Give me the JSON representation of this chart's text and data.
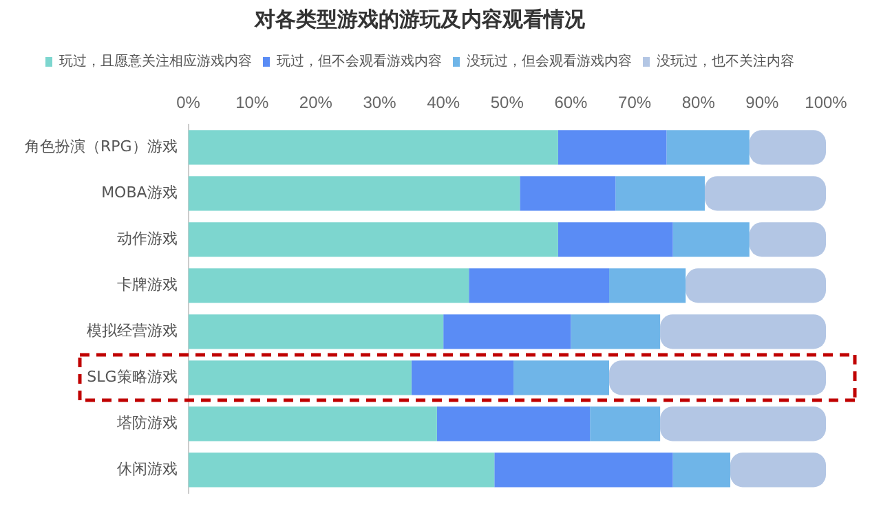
{
  "chart_data": {
    "type": "bar",
    "orientation": "horizontal",
    "stacked": true,
    "title": "对各类型游戏的游玩及内容观看情况",
    "categories": [
      "角色扮演（RPG）游戏",
      "MOBA游戏",
      "动作游戏",
      "卡牌游戏",
      "模拟经营游戏",
      "SLG策略游戏",
      "塔防游戏",
      "休闲游戏"
    ],
    "series": [
      {
        "name": "玩过，且愿意关注相应游戏内容",
        "color": "#7dd6cf",
        "values": [
          58,
          52,
          58,
          44,
          40,
          35,
          39,
          48
        ]
      },
      {
        "name": "玩过，但不会观看游戏内容",
        "color": "#5a8cf5",
        "values": [
          17,
          15,
          18,
          22,
          20,
          16,
          24,
          28
        ]
      },
      {
        "name": "没玩过，但会观看游戏内容",
        "color": "#6fb5e8",
        "values": [
          13,
          14,
          12,
          12,
          14,
          15,
          11,
          9
        ]
      },
      {
        "name": "没玩过，也不关注内容",
        "color": "#b3c6e4",
        "values": [
          12,
          19,
          12,
          22,
          26,
          34,
          26,
          15
        ]
      }
    ],
    "xlim": [
      0,
      100
    ],
    "xticks": [
      {
        "value": 0,
        "label": "0%"
      },
      {
        "value": 10,
        "label": "10%"
      },
      {
        "value": 20,
        "label": "20%"
      },
      {
        "value": 30,
        "label": "30%"
      },
      {
        "value": 40,
        "label": "40%"
      },
      {
        "value": 50,
        "label": "50%"
      },
      {
        "value": 60,
        "label": "60%"
      },
      {
        "value": 70,
        "label": "70%"
      },
      {
        "value": 80,
        "label": "80%"
      },
      {
        "value": 90,
        "label": "90%"
      },
      {
        "value": 100,
        "label": "100%"
      }
    ],
    "grid": false,
    "legend": "top"
  }
}
